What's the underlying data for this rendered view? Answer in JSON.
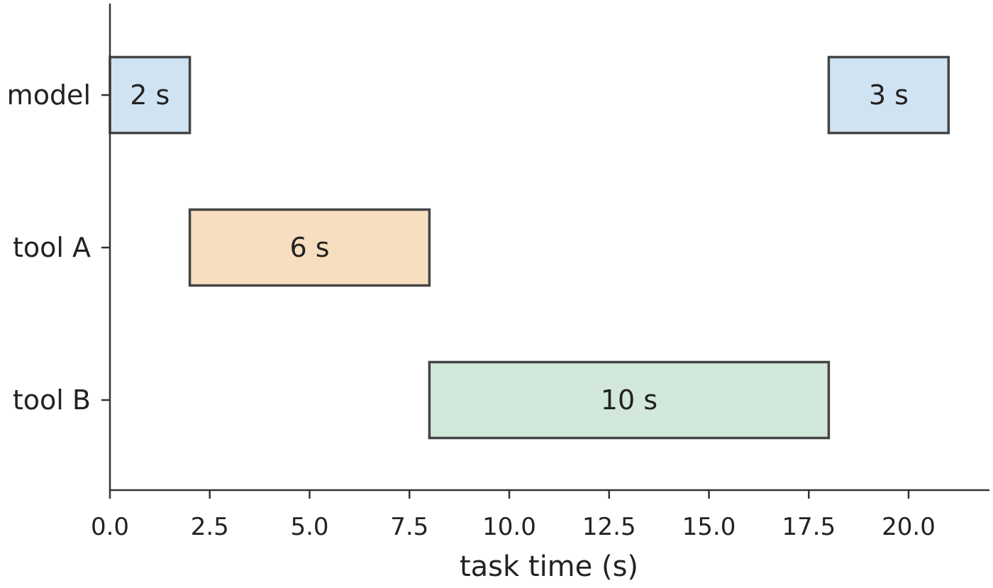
{
  "chart_data": {
    "type": "gantt",
    "xlabel": "task time (s)",
    "ylabel": "",
    "xlim": [
      0,
      22
    ],
    "xticks": [
      0,
      2.5,
      5,
      7.5,
      10,
      12.5,
      15,
      17.5,
      20
    ],
    "xtick_labels": [
      "0.0",
      "2.5",
      "5.0",
      "7.5",
      "10.0",
      "12.5",
      "15.0",
      "17.5",
      "20.0"
    ],
    "categories": [
      "model",
      "tool A",
      "tool B"
    ],
    "tasks": [
      {
        "category": "model",
        "start": 0,
        "duration": 2,
        "label": "2 s",
        "color": "#cfe3f3"
      },
      {
        "category": "tool A",
        "start": 2,
        "duration": 6,
        "label": "6 s",
        "color": "#f8dec0"
      },
      {
        "category": "tool B",
        "start": 8,
        "duration": 10,
        "label": "10 s",
        "color": "#d1e8db"
      },
      {
        "category": "model",
        "start": 18,
        "duration": 3,
        "label": "3 s",
        "color": "#cfe3f3"
      }
    ],
    "grid": false,
    "legend": "none"
  }
}
